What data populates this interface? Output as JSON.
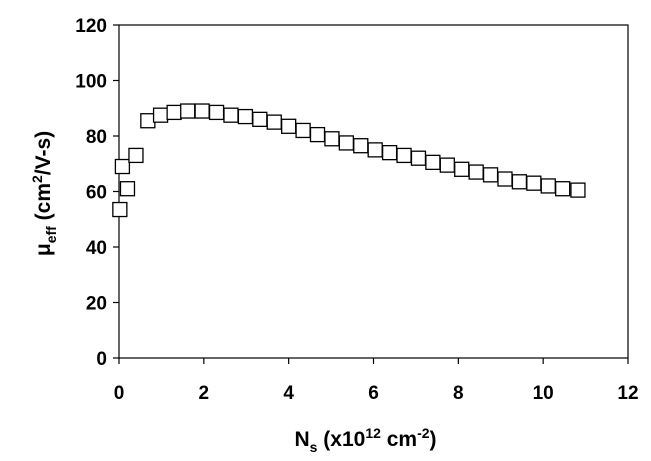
{
  "chart_data": {
    "type": "scatter",
    "xlim": [
      0,
      12
    ],
    "ylim": [
      0,
      120
    ],
    "x_ticks": [
      0,
      2,
      4,
      6,
      8,
      10,
      12
    ],
    "y_ticks": [
      0,
      20,
      40,
      60,
      80,
      100,
      120
    ],
    "grid": false,
    "legend": "none",
    "marker": "open-square",
    "marker_color": "#000000",
    "xlabel": {
      "main": "N",
      "subscript": "s",
      "pre": " (x10",
      "superscript": "12",
      "post1": " cm",
      "superscript2": "-2",
      "post2": ")"
    },
    "ylabel": {
      "main": "μ",
      "subscript": "eff",
      "pre": "  (cm",
      "superscript": "2",
      "post": "/V-s)"
    },
    "series": [
      {
        "x": [
          0.02,
          0.08,
          0.2,
          0.4,
          0.68,
          0.98,
          1.3,
          1.62,
          1.96,
          2.3,
          2.64,
          2.98,
          3.32,
          3.66,
          4.0,
          4.34,
          4.68,
          5.02,
          5.36,
          5.7,
          6.04,
          6.38,
          6.72,
          7.06,
          7.4,
          7.74,
          8.08,
          8.42,
          8.76,
          9.1,
          9.44,
          9.78,
          10.12,
          10.46,
          10.82
        ],
        "y": [
          53.5,
          69,
          61,
          73,
          85.5,
          87.5,
          88.5,
          89,
          89,
          88.5,
          87.5,
          87,
          86,
          85,
          83.5,
          82,
          80.5,
          79,
          77.5,
          76.5,
          75,
          74,
          73,
          72,
          70.5,
          69.5,
          68,
          67,
          66,
          64.5,
          63.5,
          63,
          62,
          61,
          60.5
        ]
      }
    ]
  }
}
